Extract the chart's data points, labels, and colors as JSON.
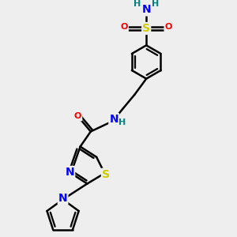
{
  "bg_color": "#eeeeee",
  "atom_colors": {
    "C": "#000000",
    "N": "#0000ff",
    "O": "#ff0000",
    "S_sul": "#cccc00",
    "S_thia": "#cccc00",
    "H": "#008080"
  },
  "font_size_atom": 10,
  "font_size_small": 8,
  "line_width": 1.8,
  "dbo": 0.12
}
